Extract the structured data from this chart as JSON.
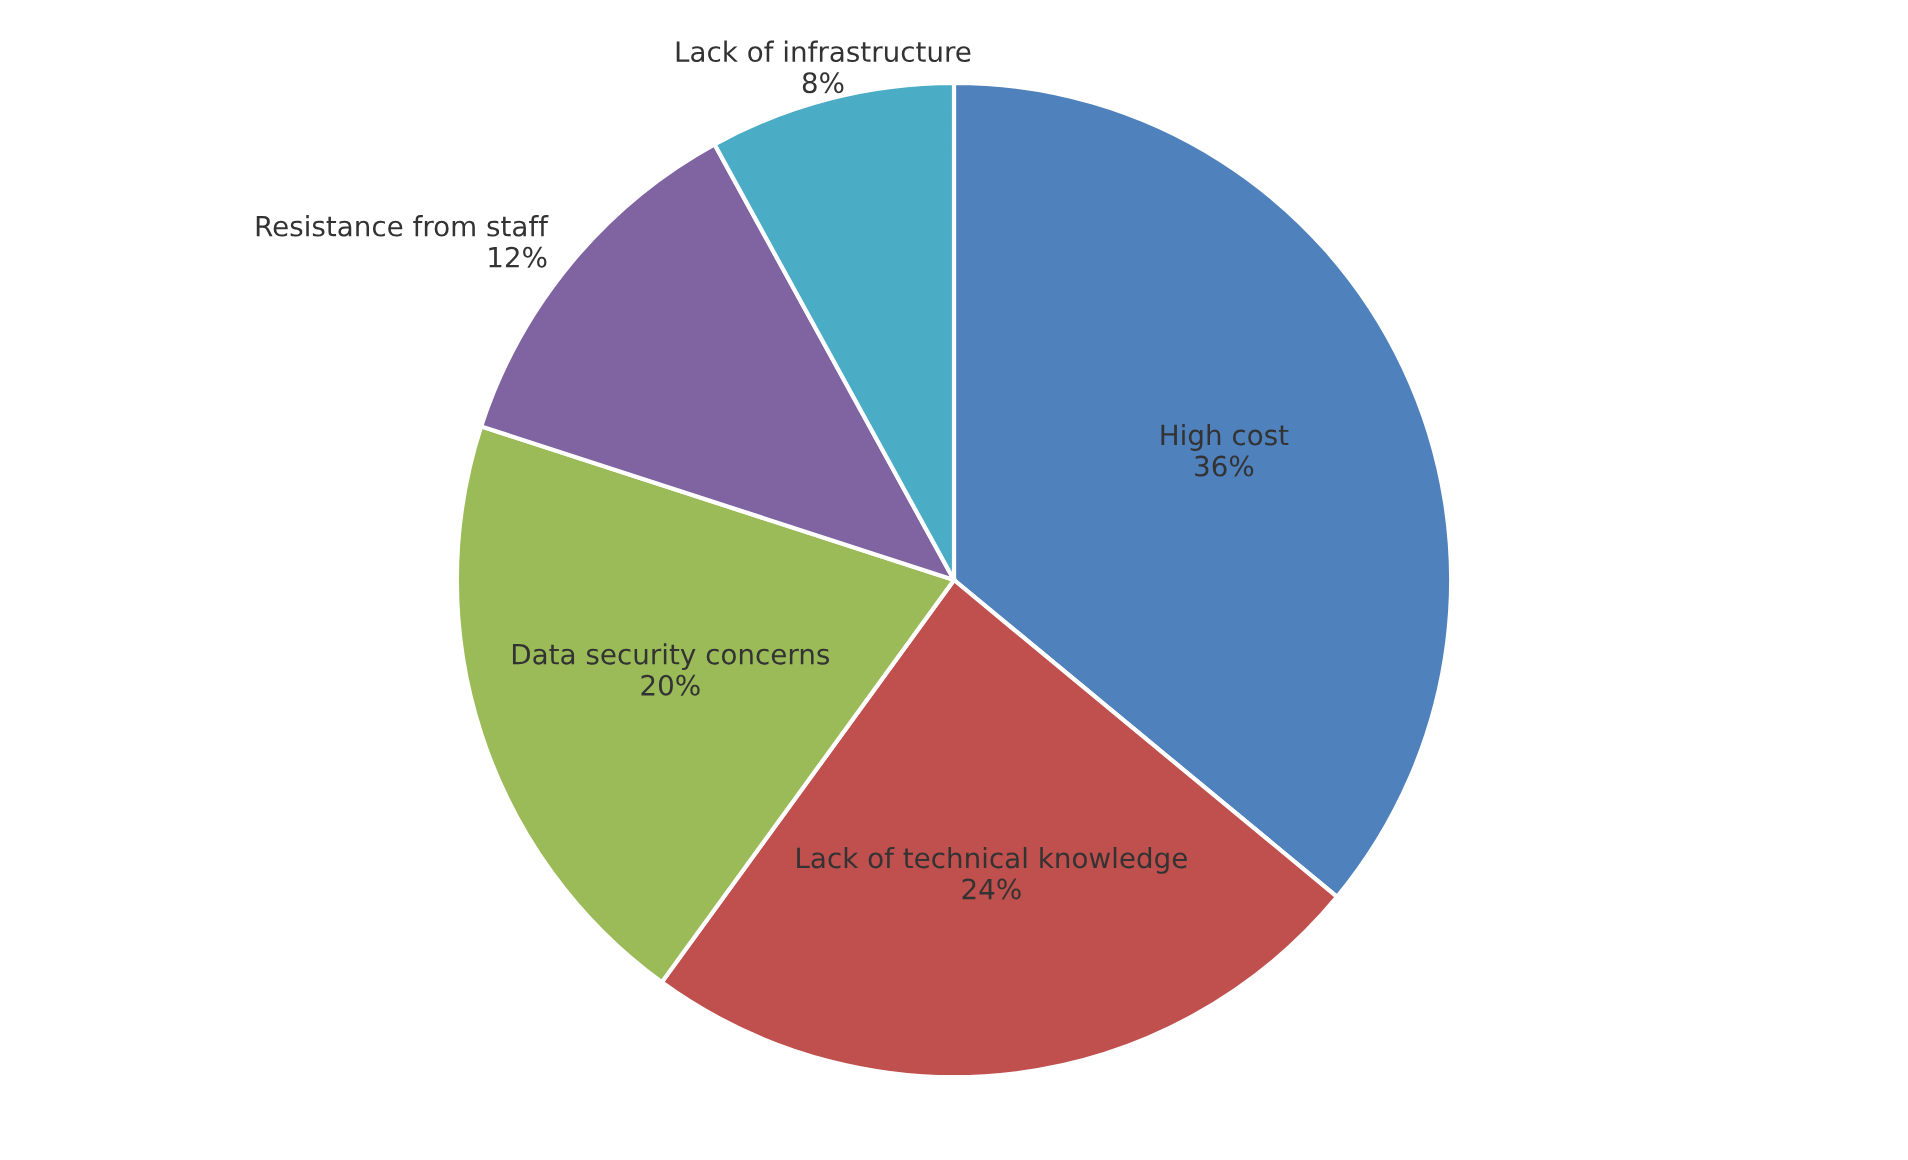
{
  "chart_data": {
    "type": "pie",
    "categories": [
      "High cost",
      "Lack of technical knowledge",
      "Data security concerns",
      "Resistance from staff",
      "Lack of infrastructure"
    ],
    "values": [
      36,
      24,
      20,
      12,
      8
    ],
    "colors": [
      "#4f81bd",
      "#c0504d",
      "#9bbb59",
      "#8064a2",
      "#4bacc6"
    ],
    "value_labels": [
      "36%",
      "24%",
      "20%",
      "12%",
      "8%"
    ],
    "legend": false
  }
}
